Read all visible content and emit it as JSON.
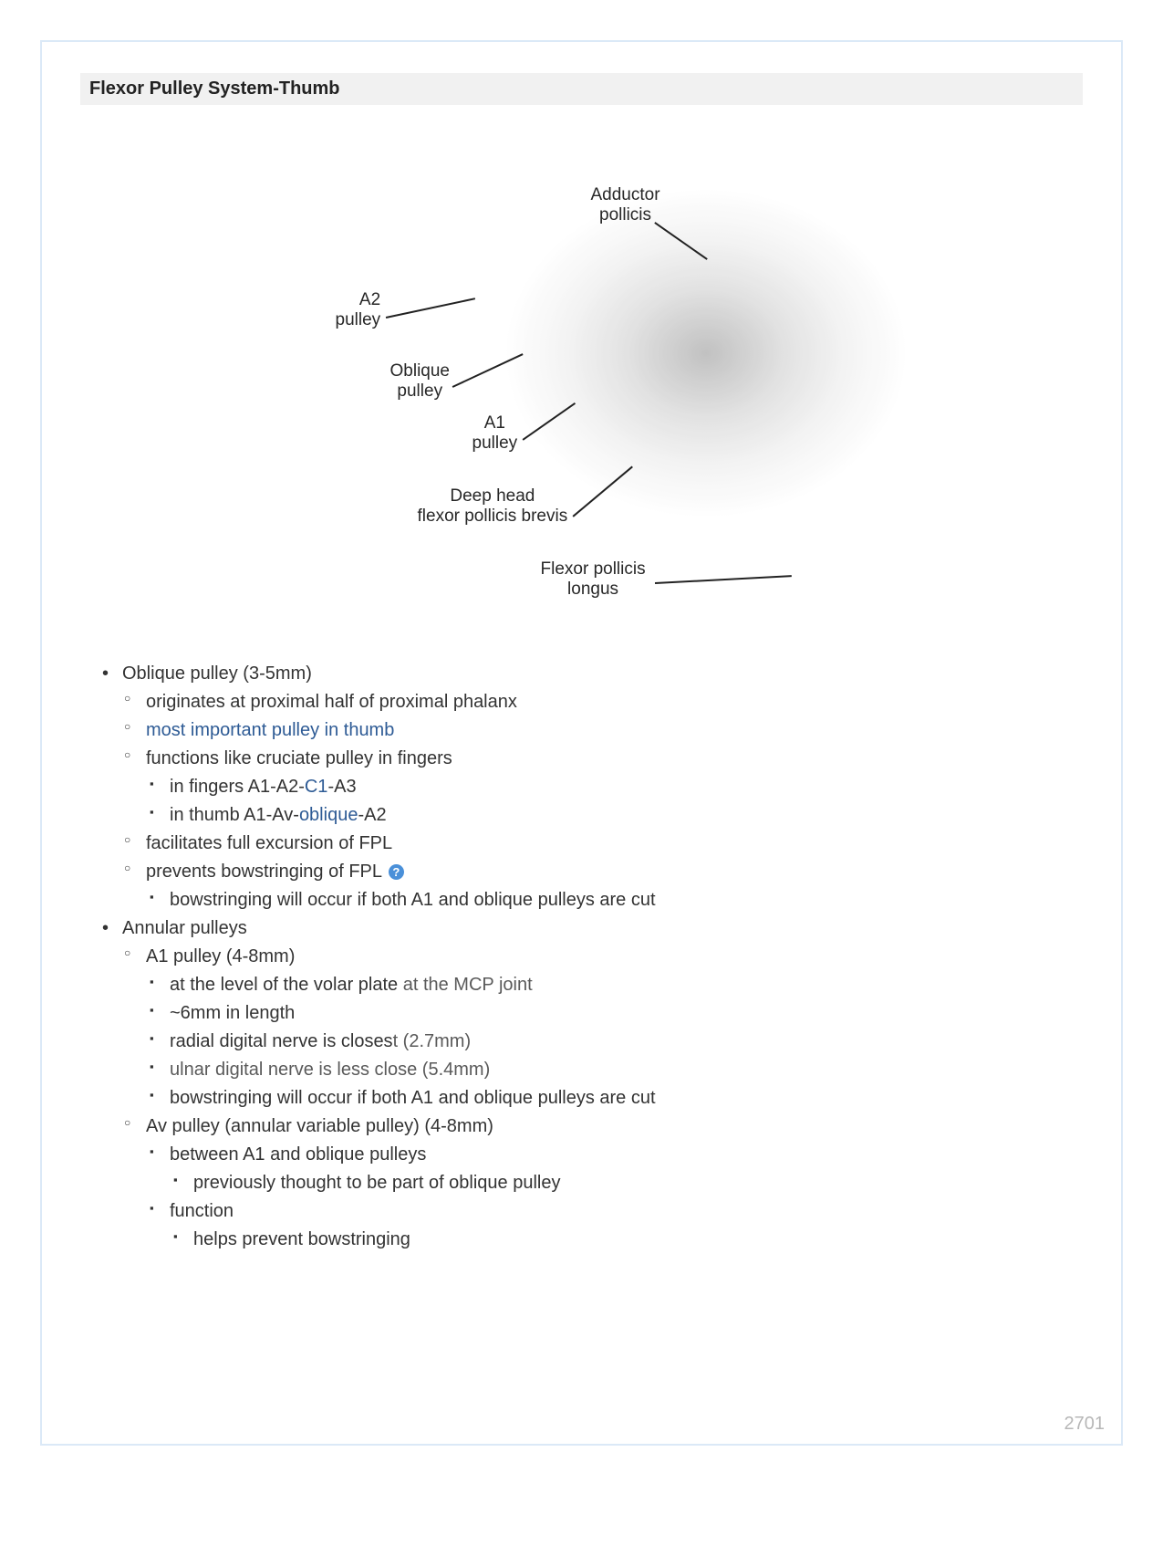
{
  "page": {
    "number": "2701",
    "border_color": "#dbe9f7"
  },
  "header": {
    "title": "Flexor Pulley System-Thumb"
  },
  "figure": {
    "type": "anatomical-diagram",
    "labels": {
      "adductor_pollicis": "Adductor\npollicis",
      "a2_pulley": "A2\npulley",
      "oblique_pulley": "Oblique\npulley",
      "a1_pulley": "A1\npulley",
      "deep_head_fpb": "Deep head\nflexor pollicis brevis",
      "fpl": "Flexor pollicis\nlongus"
    }
  },
  "list": {
    "oblique_pulley": {
      "title": "Oblique pulley (3-5mm)",
      "originates": "originates at proximal half of proximal phalanx",
      "most_important": "most important pulley in thumb",
      "functions_like": "functions like cruciate pulley in fingers",
      "in_fingers_prefix": "in fingers A1-A2-",
      "in_fingers_link": "C1",
      "in_fingers_suffix": "-A3",
      "in_thumb_prefix": "in thumb A1-Av-",
      "in_thumb_link": "oblique",
      "in_thumb_suffix": "-A2",
      "facilitates": "facilitates full excursion of FPL",
      "prevents": "prevents bowstringing of FPL",
      "bowstringing": "bowstringing will occur if both A1 and oblique pulleys are cut"
    },
    "annular_pulleys": {
      "title": "Annular pulleys",
      "a1": {
        "title": "A1 pulley (4-8mm)",
        "volar_plate_prefix": "at the level of the volar plate",
        "volar_plate_suffix": " at the MCP joint",
        "length": "~6mm in length",
        "radial_prefix": "radial digital nerve is closes",
        "radial_suffix": "t (2.7mm)",
        "ulnar": "ulnar digital nerve is less close (5.4mm)",
        "bowstringing": "bowstringing will occur if both A1 and oblique pulleys are cut"
      },
      "av": {
        "title": "Av pulley (annular variable pulley) (4-8mm)",
        "between": "between A1 and oblique pulleys",
        "previously": "previously thought to be part of oblique pulley",
        "function_label": "function",
        "helps": "helps prevent bowstringing"
      }
    }
  },
  "help_icon_glyph": "?"
}
